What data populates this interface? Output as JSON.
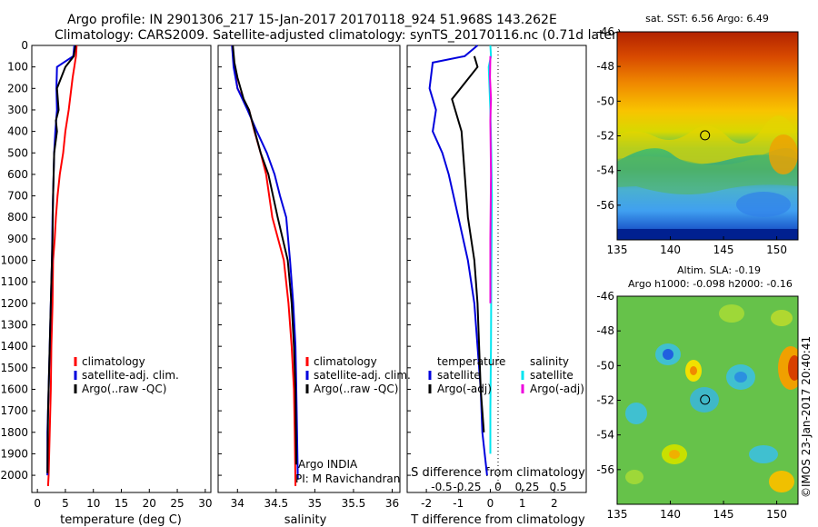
{
  "header": {
    "line1": "Argo profile: IN 2901306_217 15-Jan-2017 20170118_924 51.968S 143.262E",
    "line2": "Climatology: CARS2009. Satellite-adjusted climatology: synTS_20170116.nc (0.71d later)"
  },
  "credits": {
    "owner": "Argo INDIA",
    "pi": "PI: M Ravichandran",
    "stamp": "©IMOS 23-Jan-2017 20:40:41"
  },
  "colors": {
    "climatology": "#ff0000",
    "satellite": "#0000dd",
    "argo": "#000000",
    "sal_satellite": "#00e5f0",
    "sal_argo": "#ee00dd",
    "frame": "#000000"
  },
  "chart_data": [
    {
      "type": "line",
      "panel": "temperature",
      "xlabel": "temperature (deg C)",
      "ylabel": "",
      "xlim": [
        -1,
        31
      ],
      "ylim": [
        2080,
        0
      ],
      "xticks": [
        0,
        5,
        10,
        15,
        20,
        25,
        30
      ],
      "yticks": [
        0,
        100,
        200,
        300,
        400,
        500,
        600,
        700,
        800,
        900,
        1000,
        1100,
        1200,
        1300,
        1400,
        1500,
        1600,
        1700,
        1800,
        1900,
        2000
      ],
      "legend": [
        "climatology",
        "satellite-adj. clim.",
        "Argo(..raw -QC)"
      ],
      "series": [
        {
          "name": "climatology",
          "color": "#ff0000",
          "x": [
            7.0,
            6.9,
            6.3,
            5.6,
            5.0,
            4.6,
            4.0,
            3.6,
            3.3,
            3.1,
            2.8,
            2.7,
            2.5,
            2.4,
            2.2,
            2.0,
            1.9
          ],
          "y": [
            0,
            50,
            150,
            300,
            400,
            500,
            600,
            700,
            800,
            900,
            1000,
            1200,
            1400,
            1600,
            1800,
            2000,
            2050
          ]
        },
        {
          "name": "satellite-adj. clim.",
          "color": "#0000dd",
          "x": [
            6.6,
            6.4,
            3.5,
            3.4,
            3.5,
            3.2,
            3.0,
            2.9,
            2.7,
            2.6,
            2.4,
            2.2,
            2.0,
            1.8,
            1.8
          ],
          "y": [
            0,
            50,
            100,
            200,
            300,
            400,
            500,
            600,
            800,
            1000,
            1200,
            1400,
            1600,
            1800,
            2000
          ]
        },
        {
          "name": "Argo(..raw -QC)",
          "color": "#000000",
          "x": [
            6.8,
            6.5,
            5.0,
            3.5,
            3.8,
            3.3,
            3.5,
            3.0,
            2.8,
            2.7,
            2.5,
            2.3,
            2.1,
            1.9,
            1.8
          ],
          "y": [
            0,
            50,
            100,
            200,
            300,
            350,
            400,
            500,
            700,
            900,
            1100,
            1300,
            1500,
            1700,
            1990
          ]
        }
      ]
    },
    {
      "type": "line",
      "panel": "salinity",
      "xlabel": "salinity",
      "xlim": [
        33.75,
        36.1
      ],
      "ylim": [
        2080,
        0
      ],
      "xticks": [
        34,
        34.5,
        35,
        35.5,
        36
      ],
      "legend": [
        "climatology",
        "satellite-adj. clim.",
        "Argo(..raw -QC)"
      ],
      "series": [
        {
          "name": "climatology",
          "color": "#ff0000",
          "x": [
            33.93,
            33.96,
            34.0,
            34.15,
            34.22,
            34.3,
            34.37,
            34.45,
            34.6,
            34.66,
            34.7,
            34.73,
            34.74,
            34.75
          ],
          "y": [
            0,
            100,
            200,
            300,
            400,
            500,
            600,
            800,
            1000,
            1200,
            1400,
            1600,
            1800,
            2050
          ]
        },
        {
          "name": "satellite-adj. clim.",
          "color": "#0000dd",
          "x": [
            33.93,
            33.95,
            34.0,
            34.13,
            34.25,
            34.38,
            34.48,
            34.55,
            34.63,
            34.68,
            34.72,
            34.75,
            34.76,
            34.78
          ],
          "y": [
            0,
            100,
            200,
            300,
            400,
            500,
            600,
            700,
            800,
            1000,
            1200,
            1400,
            1600,
            2020
          ]
        },
        {
          "name": "Argo(..raw -QC)",
          "color": "#000000",
          "x": [
            33.94,
            33.96,
            34.0,
            34.08,
            34.15,
            34.3,
            34.4,
            34.52,
            34.65,
            34.7,
            34.73,
            34.75,
            34.76
          ],
          "y": [
            0,
            80,
            150,
            250,
            300,
            500,
            600,
            800,
            1000,
            1200,
            1400,
            1600,
            1950
          ]
        }
      ]
    },
    {
      "type": "line",
      "panel": "difference",
      "xlabel": "T difference from climatology",
      "xlabel_top": "S difference from climatology",
      "xlim": [
        -2.6,
        3
      ],
      "ylim": [
        2080,
        0
      ],
      "xticks": [
        -2,
        -1,
        0,
        1,
        2
      ],
      "xticks_top": [
        -0.5,
        -0.25,
        0,
        0.25,
        0.5
      ],
      "legend_headers": [
        "temperature",
        "salinity"
      ],
      "legend": [
        "satellite",
        "Argo(-adj)",
        "satellite",
        "Argo(-adj)"
      ],
      "series": [
        {
          "name": "satellite",
          "quantity": "temperature",
          "color": "#0000dd",
          "x": [
            -0.4,
            -0.8,
            -1.8,
            -1.9,
            -1.7,
            -1.8,
            -1.5,
            -1.3,
            -1.0,
            -0.7,
            -0.5,
            -0.4,
            -0.3,
            -0.25,
            -0.1
          ],
          "y": [
            0,
            50,
            80,
            200,
            300,
            400,
            500,
            600,
            800,
            1000,
            1200,
            1400,
            1600,
            1800,
            2000
          ]
        },
        {
          "name": "Argo(-adj)",
          "quantity": "temperature",
          "color": "#000000",
          "x": [
            -0.5,
            -0.4,
            -1.2,
            -0.9,
            -0.8,
            -0.7,
            -0.5,
            -0.4,
            -0.3,
            -0.2
          ],
          "y": [
            50,
            100,
            250,
            400,
            600,
            800,
            1000,
            1200,
            1600,
            1800
          ]
        },
        {
          "name": "satellite",
          "quantity": "salinity",
          "color": "#00e5f0",
          "x": [
            0.0,
            0.02,
            -0.05,
            0.0,
            0.03,
            0.05,
            0.04,
            0.03,
            0.02,
            0.0,
            0.0
          ],
          "y": [
            0,
            50,
            100,
            300,
            500,
            700,
            900,
            1100,
            1400,
            1700,
            1900
          ]
        },
        {
          "name": "Argo(-adj)",
          "quantity": "salinity",
          "color": "#ee00dd",
          "x": [
            0.0,
            -0.01,
            0.02,
            0.0,
            0.02,
            0.0,
            0.0
          ],
          "y": [
            50,
            150,
            250,
            350,
            600,
            900,
            1200
          ]
        }
      ]
    },
    {
      "type": "heatmap",
      "panel": "sst-map",
      "title": "sat. SST: 6.56 Argo: 6.49",
      "xlim": [
        135,
        152
      ],
      "ylim": [
        -58,
        -46
      ],
      "xticks": [
        135,
        140,
        145,
        150
      ],
      "yticks": [
        -46,
        -48,
        -50,
        -52,
        -54,
        -56
      ],
      "marker": {
        "lon": 143.26,
        "lat": -51.97
      }
    },
    {
      "type": "heatmap",
      "panel": "sla-map",
      "title_line1": "Altim. SLA: -0.19",
      "title_line2": "Argo h1000: -0.098 h2000: -0.16",
      "xlim": [
        135,
        152
      ],
      "ylim": [
        -58,
        -46
      ],
      "xticks": [
        135,
        140,
        145,
        150
      ],
      "yticks": [
        -46,
        -48,
        -50,
        -52,
        -54,
        -56
      ],
      "marker": {
        "lon": 143.26,
        "lat": -51.97
      }
    }
  ]
}
